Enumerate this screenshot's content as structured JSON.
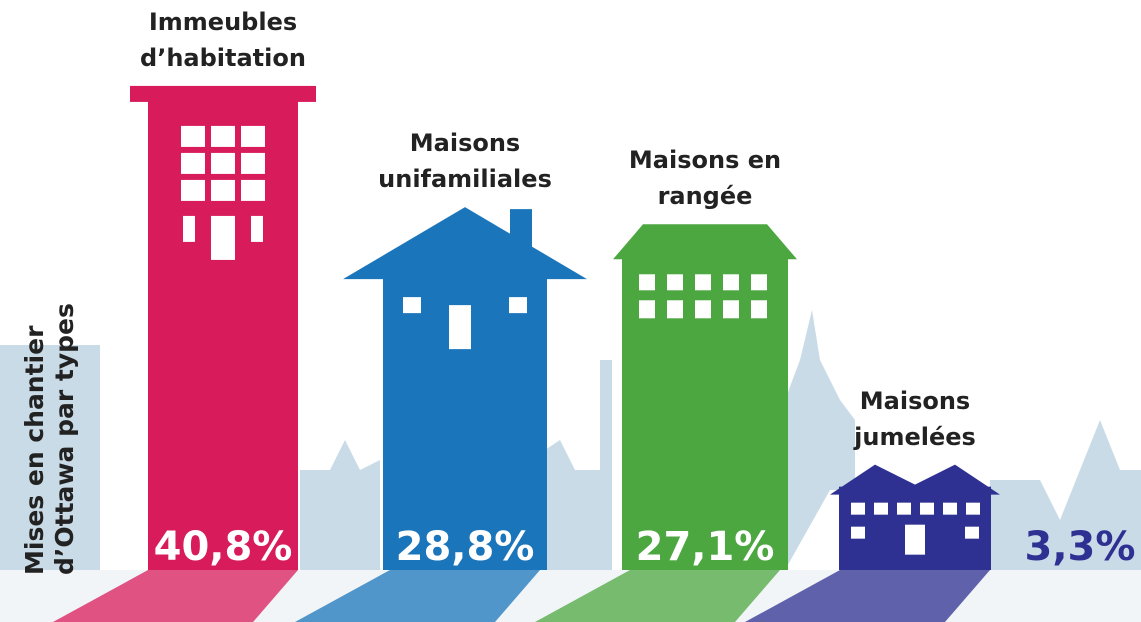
{
  "chart_data": {
    "type": "pictorial-bar",
    "title": "Mises en chantier d’Ottawa par types",
    "categories": [
      "Immeubles d’habitation",
      "Maisons unifamiliales",
      "Maisons en rangée",
      "Maisons jumelées"
    ],
    "values": [
      40.8,
      28.8,
      27.1,
      3.3
    ],
    "value_labels": [
      "40,8%",
      "28,8%",
      "27,1%",
      "3,3%"
    ],
    "colors": [
      "#d81b5b",
      "#1a75bb",
      "#4ca740",
      "#2e3092"
    ]
  }
}
